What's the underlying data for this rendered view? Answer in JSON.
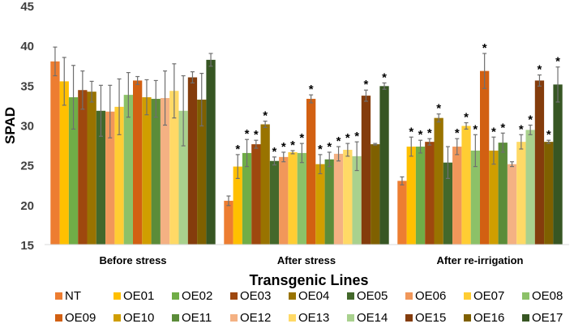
{
  "chart_data": {
    "type": "bar",
    "title": "",
    "ylabel": "SPAD",
    "xlabel": "Transgenic Lines",
    "ylim": [
      15,
      45
    ],
    "yticks": [
      "15",
      "20",
      "25",
      "30",
      "35",
      "40",
      "45"
    ],
    "grid": false,
    "legend_position": "bottom",
    "categories": [
      "Before stress",
      "After stress",
      "After re-irrigation"
    ],
    "significance_marker": "*",
    "series": [
      {
        "name": "NT",
        "color": "#ED7D31",
        "values": [
          38.0,
          20.5,
          23.0
        ],
        "errors": [
          1.8,
          0.6,
          0.5
        ],
        "sig": [
          false,
          false,
          false
        ]
      },
      {
        "name": "OE01",
        "color": "#FFC000",
        "values": [
          35.5,
          24.8,
          27.3
        ],
        "errors": [
          3.0,
          1.5,
          1.2
        ],
        "sig": [
          false,
          true,
          true
        ]
      },
      {
        "name": "OE02",
        "color": "#70AD47",
        "values": [
          33.5,
          26.5,
          27.3
        ],
        "errors": [
          4.0,
          1.7,
          0.8
        ],
        "sig": [
          false,
          true,
          true
        ]
      },
      {
        "name": "OE03",
        "color": "#9E480E",
        "values": [
          34.4,
          27.6,
          27.9
        ],
        "errors": [
          2.4,
          0.5,
          0.4
        ],
        "sig": [
          false,
          true,
          true
        ]
      },
      {
        "name": "OE04",
        "color": "#997300",
        "values": [
          34.2,
          30.1,
          30.9
        ],
        "errors": [
          1.3,
          0.4,
          0.5
        ],
        "sig": [
          false,
          true,
          true
        ]
      },
      {
        "name": "OE05",
        "color": "#43682B",
        "values": [
          31.8,
          25.5,
          25.3
        ],
        "errors": [
          3.2,
          0.5,
          2.0
        ],
        "sig": [
          false,
          true,
          false
        ]
      },
      {
        "name": "OE06",
        "color": "#F1975A",
        "values": [
          31.7,
          26.0,
          27.3
        ],
        "errors": [
          3.3,
          0.6,
          1.0
        ],
        "sig": [
          false,
          true,
          true
        ]
      },
      {
        "name": "OE07",
        "color": "#FFCD33",
        "values": [
          32.3,
          26.6,
          29.9
        ],
        "errors": [
          3.5,
          0.2,
          0.4
        ],
        "sig": [
          false,
          true,
          true
        ]
      },
      {
        "name": "OE08",
        "color": "#8CC168",
        "values": [
          33.8,
          26.5,
          26.8
        ],
        "errors": [
          2.8,
          1.2,
          2.0
        ],
        "sig": [
          false,
          true,
          true
        ]
      },
      {
        "name": "OE09",
        "color": "#D26012",
        "values": [
          35.6,
          33.3,
          36.8
        ],
        "errors": [
          0.5,
          0.5,
          2.2
        ],
        "sig": [
          false,
          true,
          true
        ]
      },
      {
        "name": "OE10",
        "color": "#D09E00",
        "values": [
          33.5,
          25.1,
          26.8
        ],
        "errors": [
          2.2,
          1.2,
          1.7
        ],
        "sig": [
          false,
          true,
          true
        ]
      },
      {
        "name": "OE11",
        "color": "#5B8C39",
        "values": [
          33.3,
          25.7,
          27.8
        ],
        "errors": [
          2.3,
          0.9,
          1.2
        ],
        "sig": [
          false,
          true,
          true
        ]
      },
      {
        "name": "OE12",
        "color": "#F4B183",
        "values": [
          33.4,
          26.4,
          25.1
        ],
        "errors": [
          3.4,
          0.9,
          0.3
        ],
        "sig": [
          false,
          true,
          false
        ]
      },
      {
        "name": "OE13",
        "color": "#FFD966",
        "values": [
          34.3,
          26.9,
          27.9
        ],
        "errors": [
          3.4,
          0.8,
          0.9
        ],
        "sig": [
          false,
          true,
          true
        ]
      },
      {
        "name": "OE14",
        "color": "#A9D18E",
        "values": [
          31.8,
          26.1,
          29.4
        ],
        "errors": [
          4.4,
          1.8,
          0.6
        ],
        "sig": [
          false,
          true,
          true
        ]
      },
      {
        "name": "OE15",
        "color": "#843C0C",
        "values": [
          36.0,
          33.7,
          35.6
        ],
        "errors": [
          0.7,
          0.7,
          0.7
        ],
        "sig": [
          false,
          true,
          true
        ]
      },
      {
        "name": "OE16",
        "color": "#7F6000",
        "values": [
          33.2,
          27.6,
          27.9
        ],
        "errors": [
          3.3,
          0.1,
          0.2
        ],
        "sig": [
          false,
          false,
          true
        ]
      },
      {
        "name": "OE17",
        "color": "#375623",
        "values": [
          38.2,
          34.9,
          35.1
        ],
        "errors": [
          0.8,
          0.4,
          2.2
        ],
        "sig": [
          false,
          true,
          true
        ]
      }
    ]
  }
}
